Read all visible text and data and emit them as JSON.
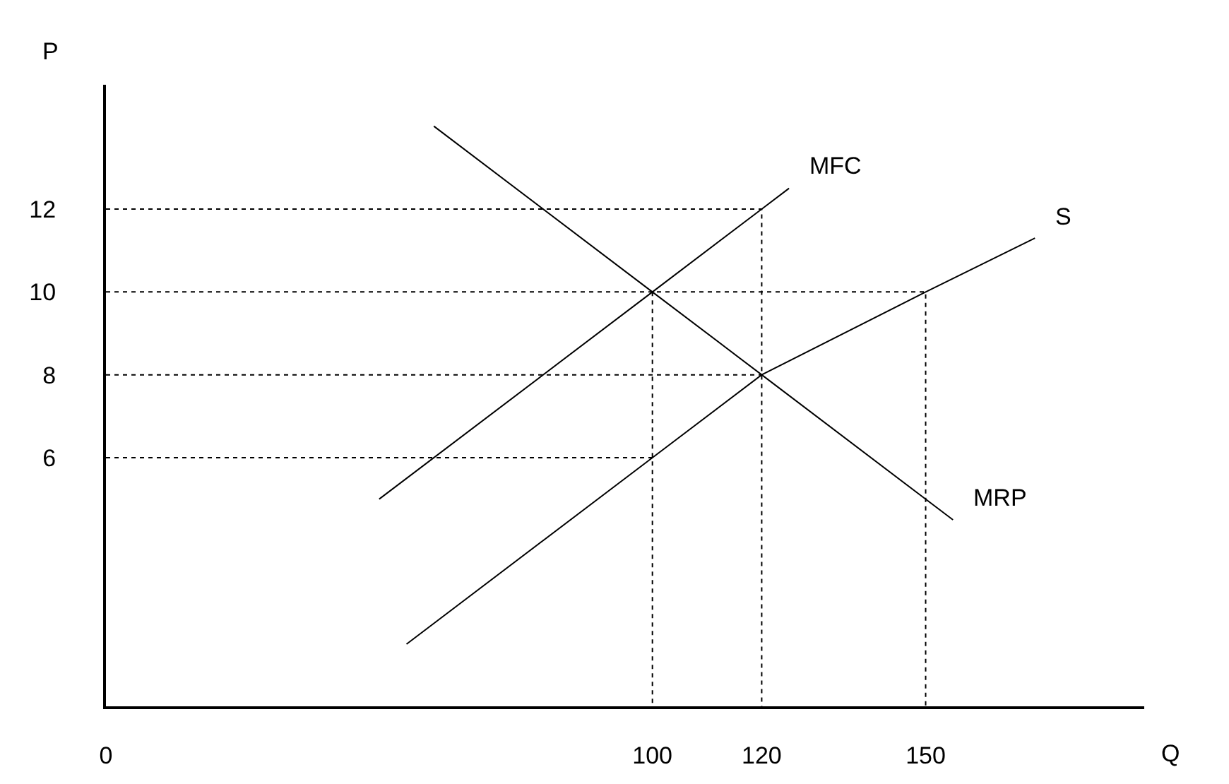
{
  "chart_data": {
    "type": "line",
    "xlabel": "Q",
    "ylabel": "P",
    "xlim": [
      0,
      190
    ],
    "ylim": [
      0,
      15
    ],
    "xticks": [
      0,
      100,
      120,
      150
    ],
    "yticks": [
      6,
      8,
      10,
      12
    ],
    "legend": false,
    "marker": "none",
    "series": [
      {
        "name": "MFC",
        "color": "#000000",
        "line_style": "solid",
        "x": [
          50,
          100,
          120,
          125
        ],
        "values": [
          5,
          10,
          12,
          12.5
        ]
      },
      {
        "name": "S",
        "color": "#000000",
        "line_style": "solid",
        "x": [
          55,
          100,
          120,
          150,
          170
        ],
        "values": [
          1.5,
          6,
          8,
          10,
          11.3
        ]
      },
      {
        "name": "MRP",
        "color": "#000000",
        "line_style": "solid",
        "x": [
          60,
          100,
          120,
          155
        ],
        "values": [
          14,
          10,
          8,
          4.5
        ]
      },
      {
        "color": "#000000",
        "line_style": "dotted",
        "x": [
          0,
          120,
          120
        ],
        "values": [
          12,
          12,
          0
        ]
      },
      {
        "color": "#000000",
        "line_style": "dotted",
        "x": [
          0,
          150,
          150
        ],
        "values": [
          10,
          10,
          0
        ]
      },
      {
        "color": "#000000",
        "line_style": "dotted",
        "x": [
          100,
          100
        ],
        "values": [
          10,
          0
        ]
      },
      {
        "color": "#000000",
        "line_style": "dotted",
        "x": [
          0,
          120
        ],
        "values": [
          8,
          8
        ]
      },
      {
        "color": "#000000",
        "line_style": "dotted",
        "x": [
          0,
          100
        ],
        "values": [
          6,
          6
        ]
      }
    ]
  }
}
